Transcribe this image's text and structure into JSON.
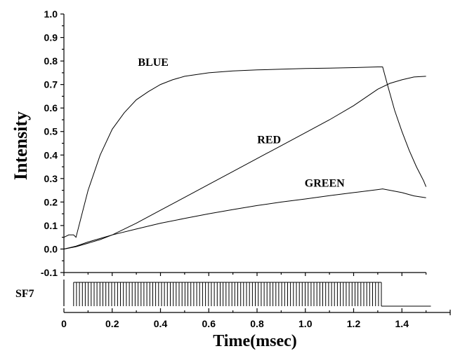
{
  "chart_data": [
    {
      "type": "line",
      "xlabel": "Time(msec)",
      "ylabel": "Intensity",
      "xlim": [
        0,
        1.6
      ],
      "ylim": [
        -0.1,
        1.0
      ],
      "x_ticks": [
        "0",
        "0.2",
        "0.4",
        "0.6",
        "0.8",
        "1.0",
        "1.2",
        "1.4"
      ],
      "x_tick_values": [
        0,
        0.2,
        0.4,
        0.6,
        0.8,
        1.0,
        1.2,
        1.4
      ],
      "y_ticks": [
        "-0.1",
        "0.0",
        "0.1",
        "0.2",
        "0.3",
        "0.4",
        "0.5",
        "0.6",
        "0.7",
        "0.8",
        "0.9",
        "1.0"
      ],
      "y_tick_values": [
        -0.1,
        0.0,
        0.1,
        0.2,
        0.3,
        0.4,
        0.5,
        0.6,
        0.7,
        0.8,
        0.9,
        1.0
      ],
      "grid": false,
      "series": [
        {
          "name": "BLUE",
          "label_anchor": [
            0.37,
            0.78
          ],
          "x": [
            0.0,
            0.02,
            0.04,
            0.05,
            0.07,
            0.1,
            0.15,
            0.2,
            0.25,
            0.3,
            0.35,
            0.4,
            0.45,
            0.5,
            0.6,
            0.7,
            0.8,
            0.9,
            1.0,
            1.1,
            1.2,
            1.3,
            1.32,
            1.34,
            1.37,
            1.4,
            1.43,
            1.46,
            1.49,
            1.5
          ],
          "y": [
            0.05,
            0.06,
            0.06,
            0.05,
            0.13,
            0.25,
            0.4,
            0.51,
            0.58,
            0.635,
            0.67,
            0.7,
            0.72,
            0.735,
            0.75,
            0.758,
            0.762,
            0.765,
            0.768,
            0.77,
            0.772,
            0.775,
            0.775,
            0.7,
            0.59,
            0.5,
            0.42,
            0.35,
            0.29,
            0.265
          ]
        },
        {
          "name": "RED",
          "label_anchor": [
            0.85,
            0.45
          ],
          "x": [
            0.0,
            0.05,
            0.1,
            0.15,
            0.2,
            0.3,
            0.4,
            0.5,
            0.6,
            0.7,
            0.8,
            0.9,
            1.0,
            1.1,
            1.2,
            1.3,
            1.35,
            1.4,
            1.45,
            1.5
          ],
          "y": [
            0.0,
            0.01,
            0.025,
            0.04,
            0.06,
            0.11,
            0.165,
            0.22,
            0.275,
            0.33,
            0.385,
            0.44,
            0.495,
            0.55,
            0.61,
            0.68,
            0.705,
            0.72,
            0.732,
            0.735
          ]
        },
        {
          "name": "GREEN",
          "label_anchor": [
            1.08,
            0.265
          ],
          "x": [
            0.0,
            0.05,
            0.1,
            0.15,
            0.2,
            0.3,
            0.4,
            0.5,
            0.6,
            0.7,
            0.8,
            0.9,
            1.0,
            1.1,
            1.2,
            1.3,
            1.32,
            1.4,
            1.45,
            1.5
          ],
          "y": [
            0.0,
            0.012,
            0.03,
            0.045,
            0.06,
            0.085,
            0.11,
            0.13,
            0.15,
            0.168,
            0.185,
            0.2,
            0.213,
            0.227,
            0.24,
            0.253,
            0.256,
            0.24,
            0.226,
            0.218
          ]
        }
      ]
    },
    {
      "type": "pulse_train",
      "label": "SF7",
      "pulse_start": 0.04,
      "pulse_end": 1.315,
      "pulse_count": 106,
      "baseline_end": 1.52
    }
  ]
}
